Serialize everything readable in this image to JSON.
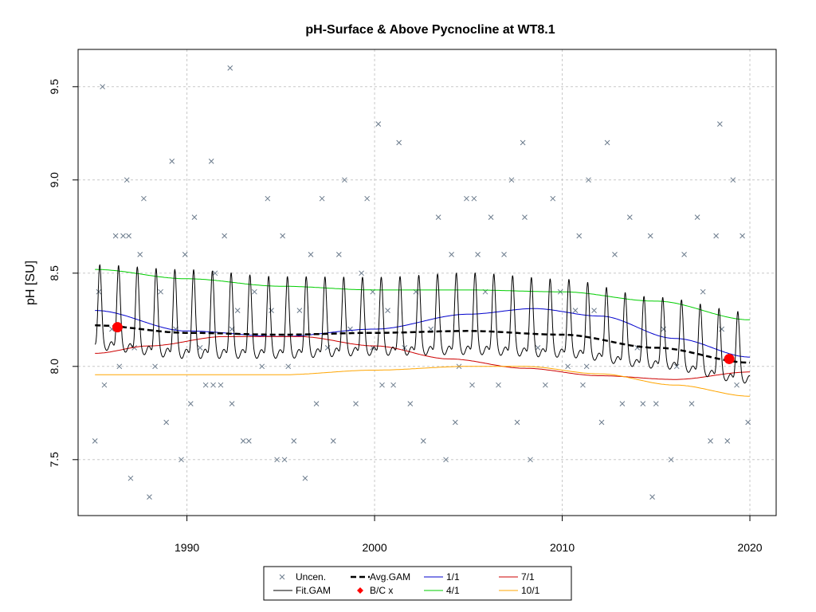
{
  "chart_data": {
    "type": "line",
    "title": "pH-Surface & Above Pycnocline at WT8.1",
    "xlabel": "",
    "ylabel": "pH [SU]",
    "xlim": [
      1984.2,
      2021.4
    ],
    "ylim": [
      7.2,
      9.7
    ],
    "x_ticks": [
      1990,
      2000,
      2010,
      2020
    ],
    "x_tick_labels": [
      "1990",
      "2000",
      "2010",
      "2020"
    ],
    "y_ticks": [
      7.5,
      8.0,
      8.5,
      9.0,
      9.5
    ],
    "y_tick_labels": [
      "7.5",
      "8.0",
      "8.5",
      "9.0",
      "9.5"
    ],
    "grid": true,
    "legend_position": "bottom",
    "legend": [
      {
        "label": "Uncen.",
        "symbol": "x",
        "color": "#6b7b8c"
      },
      {
        "label": "Avg.GAM",
        "symbol": "dashed-line",
        "color": "#000000"
      },
      {
        "label": "1/1",
        "symbol": "line",
        "color": "#0000cd"
      },
      {
        "label": "7/1",
        "symbol": "line",
        "color": "#cd0000"
      },
      {
        "label": "Fit.GAM",
        "symbol": "line",
        "color": "#000000"
      },
      {
        "label": "B/C x",
        "symbol": "diamond",
        "color": "#ff0000"
      },
      {
        "label": "4/1",
        "symbol": "line",
        "color": "#00cd00"
      },
      {
        "label": "10/1",
        "symbol": "line",
        "color": "#ffa500"
      }
    ],
    "series": [
      {
        "name": "1/1",
        "color": "#0000cd",
        "x": [
          1985.1,
          1990,
          1995,
          2000,
          2005,
          2008.5,
          2012,
          2016,
          2020
        ],
        "y": [
          8.3,
          8.19,
          8.16,
          8.2,
          8.28,
          8.31,
          8.27,
          8.15,
          8.05
        ]
      },
      {
        "name": "4/1",
        "color": "#00cd00",
        "x": [
          1985.1,
          1990,
          1995,
          2000,
          2005,
          2010,
          2015,
          2020
        ],
        "y": [
          8.52,
          8.47,
          8.43,
          8.41,
          8.41,
          8.4,
          8.35,
          8.25
        ]
      },
      {
        "name": "7/1",
        "color": "#cd0000",
        "x": [
          1985.1,
          1988,
          1992,
          1996,
          2000,
          2004,
          2008,
          2012,
          2016,
          2020
        ],
        "y": [
          8.07,
          8.11,
          8.16,
          8.16,
          8.11,
          8.04,
          7.99,
          7.95,
          7.93,
          7.97
        ]
      },
      {
        "name": "10/1",
        "color": "#ffa500",
        "x": [
          1985.1,
          1990,
          1995,
          2000,
          2005,
          2008,
          2012,
          2016,
          2020
        ],
        "y": [
          7.955,
          7.955,
          7.955,
          7.98,
          8.0,
          8.0,
          7.96,
          7.9,
          7.84
        ]
      },
      {
        "name": "Avg.GAM",
        "color": "#000000",
        "x": [
          1985.1,
          1990,
          1995,
          2000,
          2005,
          2010,
          2015,
          2020
        ],
        "y": [
          8.22,
          8.18,
          8.17,
          8.18,
          8.19,
          8.17,
          8.1,
          8.02
        ]
      },
      {
        "name": "Fit.GAM",
        "color": "#000000",
        "seasonal": true,
        "x": [
          1985.1,
          1990,
          1995,
          2000,
          2005,
          2010,
          2015,
          2020
        ],
        "base": [
          8.22,
          8.18,
          8.17,
          8.18,
          8.19,
          8.17,
          8.1,
          8.02
        ],
        "amplitude": [
          0.24,
          0.25,
          0.23,
          0.22,
          0.23,
          0.22,
          0.2,
          0.2
        ]
      }
    ],
    "bc_points": {
      "name": "B/C x",
      "color": "#ff0000",
      "x": [
        1986.3,
        2018.9
      ],
      "y": [
        8.21,
        8.04
      ]
    },
    "uncen_points": {
      "name": "Uncen.",
      "color": "#6b7b8c",
      "x": [
        1985.1,
        1985.3,
        1985.5,
        1985.6,
        1986.0,
        1986.2,
        1986.4,
        1986.6,
        1986.8,
        1987.0,
        1987.2,
        1987.5,
        1987.7,
        1988.0,
        1988.3,
        1988.6,
        1988.9,
        1989.2,
        1989.4,
        1989.7,
        1989.9,
        1990.2,
        1990.4,
        1990.7,
        1991.0,
        1991.3,
        1991.5,
        1991.8,
        1992.0,
        1992.3,
        1992.4,
        1992.7,
        1993.0,
        1993.3,
        1993.6,
        1994.0,
        1994.3,
        1994.5,
        1994.8,
        1995.1,
        1995.4,
        1995.7,
        1996.0,
        1996.3,
        1996.6,
        1996.9,
        1997.2,
        1997.5,
        1997.8,
        1998.1,
        1998.4,
        1998.7,
        1999.0,
        1999.3,
        1999.6,
        1999.9,
        2000.2,
        2000.4,
        2000.7,
        2001.0,
        2001.3,
        2001.6,
        2001.9,
        2002.2,
        2002.6,
        2003.0,
        2003.4,
        2003.8,
        2004.1,
        2004.5,
        2004.9,
        2005.2,
        2005.5,
        2005.9,
        2006.2,
        2006.6,
        2006.9,
        2007.3,
        2007.6,
        2008.0,
        2008.3,
        2008.7,
        2009.1,
        2009.5,
        2009.9,
        2010.3,
        2010.7,
        2011.1,
        2011.4,
        2011.7,
        2012.1,
        2012.4,
        2012.8,
        2013.2,
        2013.6,
        2014.0,
        2014.3,
        2014.7,
        2015.0,
        2015.4,
        2015.8,
        2016.1,
        2016.5,
        2016.9,
        2017.2,
        2017.5,
        2017.9,
        2018.2,
        2018.5,
        2018.8,
        2019.1,
        2019.3,
        2019.6,
        2019.9,
        1986.9,
        1991.4,
        1992.4,
        1999.9,
        2007.9,
        2011.3,
        2018.4,
        2005.3,
        1995.2,
        2004.3,
        2010.9,
        2014.8
      ],
      "y": [
        7.6,
        8.4,
        9.5,
        7.9,
        8.2,
        8.7,
        8.0,
        8.7,
        9.0,
        7.4,
        8.1,
        8.6,
        8.9,
        7.3,
        8.0,
        8.4,
        7.7,
        9.1,
        8.2,
        7.5,
        8.6,
        7.8,
        8.8,
        8.1,
        7.9,
        9.1,
        8.5,
        7.9,
        8.7,
        9.6,
        8.2,
        8.3,
        7.6,
        7.6,
        8.4,
        8.0,
        8.9,
        8.3,
        7.5,
        8.7,
        8.0,
        7.6,
        8.3,
        7.4,
        8.6,
        7.8,
        8.9,
        8.1,
        7.6,
        8.6,
        9.0,
        8.2,
        7.8,
        8.5,
        8.9,
        8.1,
        9.3,
        7.9,
        8.3,
        7.9,
        9.2,
        8.1,
        7.8,
        8.4,
        7.6,
        8.2,
        8.8,
        7.5,
        8.6,
        8.0,
        8.9,
        7.9,
        8.6,
        8.4,
        8.8,
        7.9,
        8.6,
        9.0,
        7.7,
        8.8,
        7.5,
        8.1,
        7.9,
        8.9,
        8.4,
        8.0,
        8.3,
        7.9,
        9.0,
        8.3,
        7.7,
        9.2,
        8.6,
        7.8,
        8.8,
        8.1,
        7.8,
        8.7,
        7.8,
        8.2,
        7.5,
        8.0,
        8.6,
        7.8,
        8.8,
        8.4,
        7.6,
        8.7,
        8.2,
        7.6,
        9.0,
        7.9,
        8.7,
        7.7,
        8.7,
        7.9,
        7.8,
        8.4,
        9.2,
        8.0,
        9.3,
        8.9,
        7.5,
        7.7,
        8.7,
        7.3
      ]
    }
  }
}
